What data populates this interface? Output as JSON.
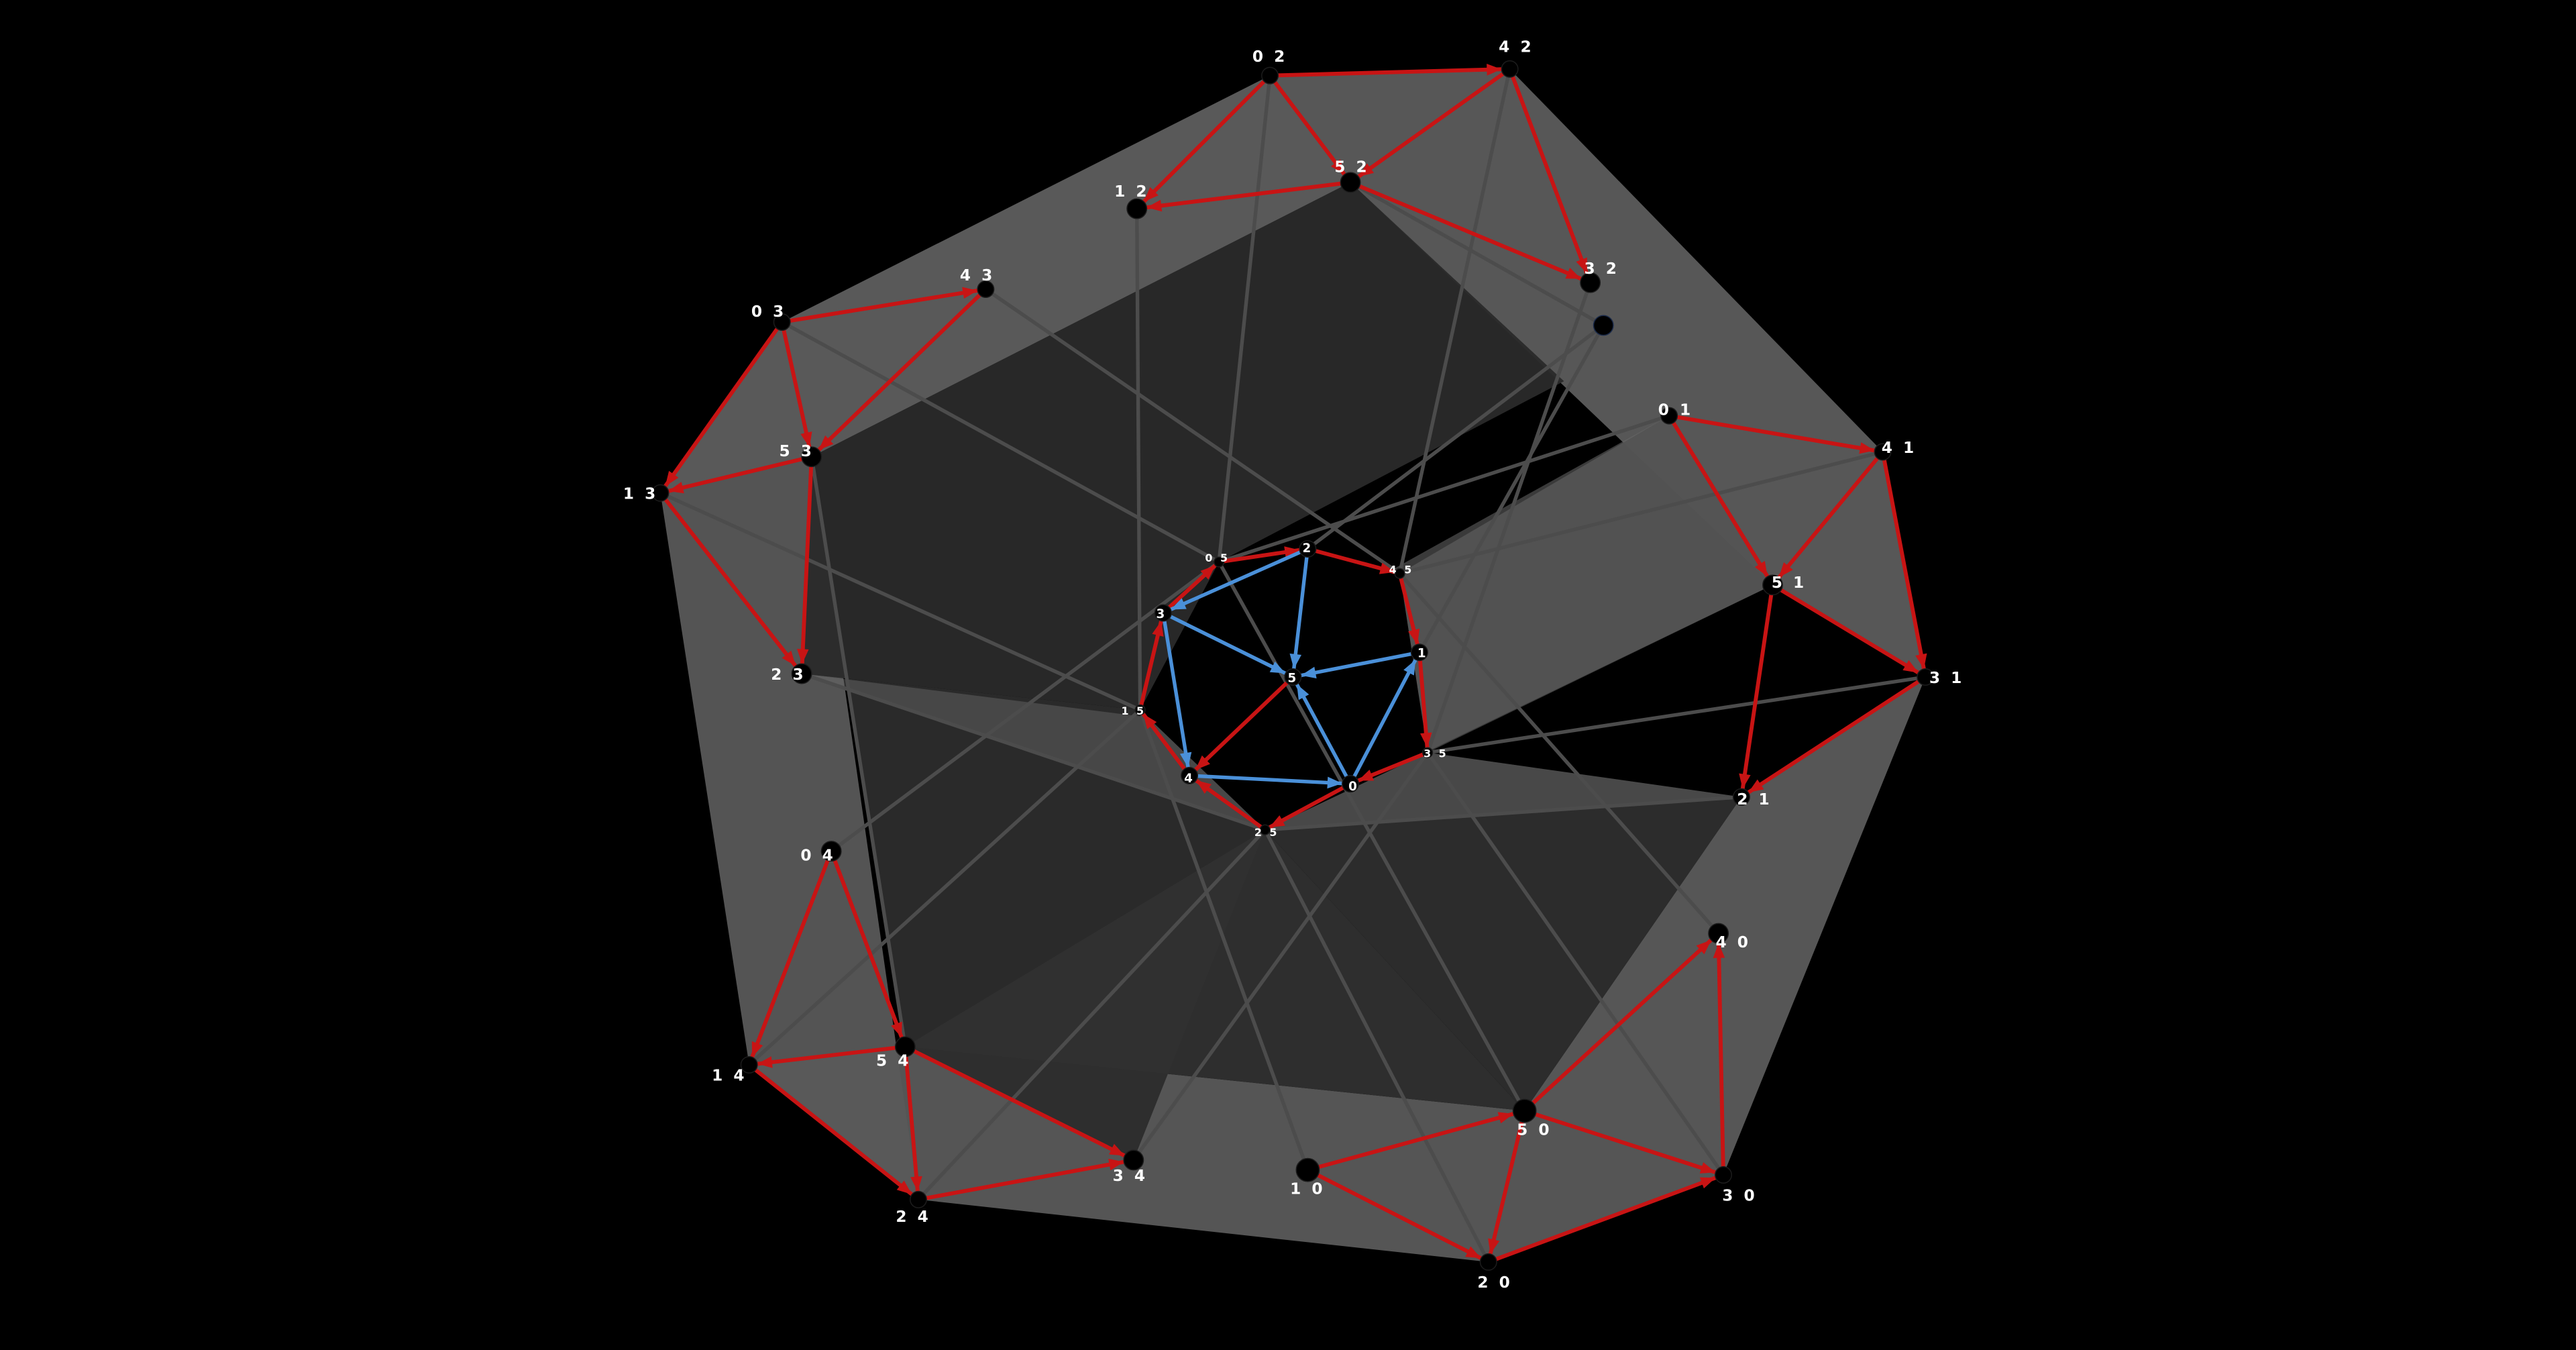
{
  "colors": {
    "background": "#000000",
    "face_fill": "#5a5a5a",
    "inner_face_fill": "#3c3c3c",
    "structure_edge": "#4c4c4c",
    "directed_edge": "#c81414",
    "inner_edge": "#4a90d9",
    "node": "#000000",
    "label": "#ffffff"
  },
  "nodes": [
    {
      "id": "02",
      "label": "0 2"
    },
    {
      "id": "42",
      "label": "4 2"
    },
    {
      "id": "52",
      "label": "5 2"
    },
    {
      "id": "12",
      "label": "1 2"
    },
    {
      "id": "32",
      "label": "3 2"
    },
    {
      "id": "03",
      "label": "0 3"
    },
    {
      "id": "43",
      "label": "4 3"
    },
    {
      "id": "53",
      "label": "5 3"
    },
    {
      "id": "13",
      "label": "1 3"
    },
    {
      "id": "23",
      "label": "2 3"
    },
    {
      "id": "01",
      "label": "0 1"
    },
    {
      "id": "41",
      "label": "4 1"
    },
    {
      "id": "51",
      "label": "5 1"
    },
    {
      "id": "31",
      "label": "3 1"
    },
    {
      "id": "21",
      "label": "2 1"
    },
    {
      "id": "04",
      "label": "0 4"
    },
    {
      "id": "14",
      "label": "1 4"
    },
    {
      "id": "54",
      "label": "5 4"
    },
    {
      "id": "24",
      "label": "2 4"
    },
    {
      "id": "34",
      "label": "3 4"
    },
    {
      "id": "10",
      "label": "1 0"
    },
    {
      "id": "50",
      "label": "5 0"
    },
    {
      "id": "20",
      "label": "2 0"
    },
    {
      "id": "30",
      "label": "3 0"
    },
    {
      "id": "40",
      "label": "4 0"
    },
    {
      "id": "05",
      "label": "0 5"
    },
    {
      "id": "45",
      "label": "4 5"
    },
    {
      "id": "15",
      "label": "1 5"
    },
    {
      "id": "35",
      "label": "3 5"
    },
    {
      "id": "25",
      "label": "2 5"
    },
    {
      "id": "0",
      "label": "0"
    },
    {
      "id": "1",
      "label": "1"
    },
    {
      "id": "2",
      "label": "2"
    },
    {
      "id": "3",
      "label": "3"
    },
    {
      "id": "4",
      "label": "4"
    },
    {
      "id": "5",
      "label": "5"
    },
    {
      "id": "hidden",
      "label": ""
    }
  ],
  "directed_edges": [
    [
      "02",
      "42"
    ],
    [
      "42",
      "52"
    ],
    [
      "02",
      "52"
    ],
    [
      "52",
      "12"
    ],
    [
      "02",
      "12"
    ],
    [
      "42",
      "32"
    ],
    [
      "52",
      "32"
    ],
    [
      "03",
      "43"
    ],
    [
      "43",
      "53"
    ],
    [
      "03",
      "53"
    ],
    [
      "53",
      "13"
    ],
    [
      "03",
      "13"
    ],
    [
      "13",
      "23"
    ],
    [
      "53",
      "23"
    ],
    [
      "01",
      "41"
    ],
    [
      "41",
      "51"
    ],
    [
      "01",
      "51"
    ],
    [
      "41",
      "31"
    ],
    [
      "51",
      "31"
    ],
    [
      "51",
      "21"
    ],
    [
      "31",
      "21"
    ],
    [
      "04",
      "14"
    ],
    [
      "04",
      "54"
    ],
    [
      "54",
      "14"
    ],
    [
      "14",
      "24"
    ],
    [
      "54",
      "24"
    ],
    [
      "54",
      "34"
    ],
    [
      "24",
      "34"
    ],
    [
      "10",
      "50"
    ],
    [
      "10",
      "20"
    ],
    [
      "50",
      "20"
    ],
    [
      "50",
      "40"
    ],
    [
      "30",
      "40"
    ],
    [
      "50",
      "30"
    ],
    [
      "20",
      "30"
    ],
    [
      "05",
      "2"
    ],
    [
      "2",
      "45"
    ],
    [
      "45",
      "1"
    ],
    [
      "1",
      "35"
    ],
    [
      "35",
      "0"
    ],
    [
      "0",
      "25"
    ],
    [
      "25",
      "4"
    ],
    [
      "4",
      "15"
    ],
    [
      "15",
      "3"
    ],
    [
      "3",
      "05"
    ],
    [
      "5",
      "4"
    ]
  ],
  "inner_edges": [
    [
      "2",
      "3"
    ],
    [
      "3",
      "5"
    ],
    [
      "2",
      "5"
    ],
    [
      "1",
      "5"
    ],
    [
      "0",
      "5"
    ],
    [
      "0",
      "1"
    ],
    [
      "3",
      "4"
    ],
    [
      "4",
      "0"
    ]
  ],
  "structure_edges": [
    [
      "02",
      "05"
    ],
    [
      "42",
      "45"
    ],
    [
      "52",
      "hidden"
    ],
    [
      "12",
      "15"
    ],
    [
      "32",
      "35"
    ],
    [
      "03",
      "05"
    ],
    [
      "43",
      "45"
    ],
    [
      "13",
      "15"
    ],
    [
      "23",
      "25"
    ],
    [
      "53",
      "54"
    ],
    [
      "01",
      "05"
    ],
    [
      "41",
      "45"
    ],
    [
      "31",
      "35"
    ],
    [
      "21",
      "25"
    ],
    [
      "51",
      "01"
    ],
    [
      "04",
      "05"
    ],
    [
      "14",
      "15"
    ],
    [
      "24",
      "25"
    ],
    [
      "34",
      "35"
    ],
    [
      "54",
      "04"
    ],
    [
      "10",
      "15"
    ],
    [
      "20",
      "25"
    ],
    [
      "30",
      "35"
    ],
    [
      "40",
      "45"
    ],
    [
      "50",
      "05"
    ],
    [
      "2",
      "hidden"
    ],
    [
      "hidden",
      "1"
    ]
  ]
}
